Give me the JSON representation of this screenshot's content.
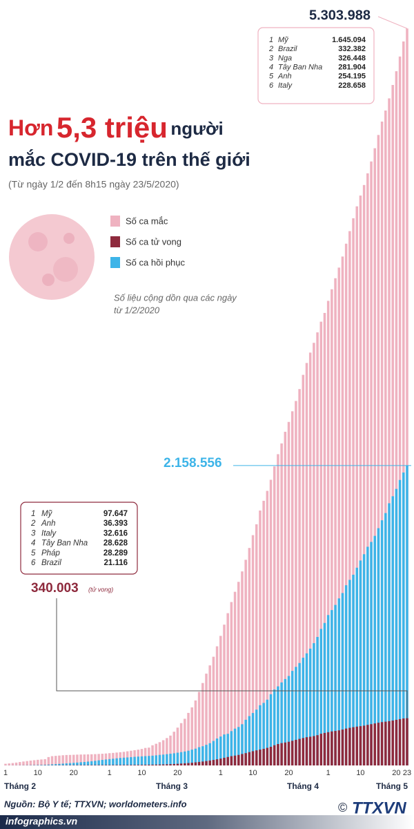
{
  "chart_data": {
    "type": "overlaid_bar",
    "title": {
      "lead": "Hơn",
      "highlight": "5,3 triệu",
      "rest": "người",
      "line2": "mắc COVID-19 trên thế giới"
    },
    "subtitle": "(Từ ngày 1/2 đến 8h15 ngày 23/5/2020)",
    "note": [
      "Số liệu cộng dồn qua các ngày",
      "từ 1/2/2020"
    ],
    "categories": [
      "1",
      null,
      null,
      null,
      null,
      null,
      null,
      null,
      null,
      "10",
      null,
      null,
      null,
      null,
      null,
      null,
      null,
      null,
      null,
      "20",
      null,
      null,
      null,
      null,
      null,
      null,
      null,
      null,
      null,
      "1",
      null,
      null,
      null,
      null,
      null,
      null,
      null,
      null,
      "10",
      null,
      null,
      null,
      null,
      null,
      null,
      null,
      null,
      null,
      "20",
      null,
      null,
      null,
      null,
      null,
      null,
      null,
      null,
      null,
      null,
      null,
      "1",
      null,
      null,
      null,
      null,
      null,
      null,
      null,
      null,
      "10",
      null,
      null,
      null,
      null,
      null,
      null,
      null,
      null,
      null,
      "20",
      null,
      null,
      null,
      null,
      null,
      null,
      null,
      null,
      null,
      null,
      "1",
      null,
      null,
      null,
      null,
      null,
      null,
      null,
      null,
      "10",
      null,
      null,
      null,
      null,
      null,
      null,
      null,
      null,
      null,
      "20",
      null,
      null,
      "23"
    ],
    "month_labels": [
      "Tháng 2",
      "Tháng 3",
      "Tháng 4",
      "Tháng 5"
    ],
    "ylim": [
      0,
      5350000
    ],
    "series": [
      {
        "name": "Số ca mắc",
        "color": "#efb2c0",
        "end_label": "5.303.988",
        "values": [
          12000,
          14500,
          17400,
          20600,
          24500,
          28300,
          31500,
          34900,
          37600,
          40600,
          43100,
          45200,
          60400,
          66900,
          69000,
          71200,
          73300,
          75200,
          75700,
          76700,
          77800,
          78600,
          79000,
          79600,
          80400,
          81400,
          82700,
          84100,
          86000,
          88400,
          90300,
          92800,
          95100,
          97900,
          101800,
          105800,
          109800,
          113600,
          118600,
          125900,
          128400,
          145200,
          156100,
          167500,
          181500,
          197100,
          214900,
          242700,
          272200,
          304500,
          336000,
          378200,
          418000,
          467600,
          529600,
          593300,
          660700,
          720100,
          782400,
          857500,
          932600,
          1013300,
          1095900,
          1176100,
          1249800,
          1321400,
          1396500,
          1480200,
          1565300,
          1657500,
          1735700,
          1834700,
          1904800,
          1976200,
          2056100,
          2152400,
          2240200,
          2317800,
          2401400,
          2472300,
          2549000,
          2623200,
          2708900,
          2811200,
          2896700,
          2971500,
          3041700,
          3117000,
          3193900,
          3256800,
          3343800,
          3427300,
          3506700,
          3583100,
          3662700,
          3755300,
          3845700,
          3938100,
          4024000,
          4101700,
          4177500,
          4261700,
          4347000,
          4442200,
          4537700,
          4634100,
          4713600,
          4801100,
          4897500,
          4996500,
          5102400,
          5210800,
          5303988
        ]
      },
      {
        "name": "Số ca tử vong",
        "color": "#8e2a3d",
        "end_label": "340.003",
        "end_note": "(tử vong)",
        "values": [
          259,
          305,
          362,
          426,
          492,
          565,
          638,
          724,
          813,
          910,
          1018,
          1115,
          1369,
          1384,
          1524,
          1666,
          1870,
          2009,
          2126,
          2247,
          2360,
          2460,
          2618,
          2699,
          2763,
          2800,
          2858,
          2923,
          2977,
          3050,
          3117,
          3202,
          3285,
          3387,
          3494,
          3599,
          3827,
          4030,
          4292,
          4635,
          4998,
          5438,
          5855,
          6521,
          7177,
          7989,
          9118,
          10297,
          11851,
          13568,
          15405,
          17386,
          19666,
          22337,
          25236,
          28309,
          31819,
          35311,
          39600,
          44264,
          49175,
          55200,
          60800,
          66900,
          70800,
          75800,
          82400,
          88700,
          95800,
          102700,
          108700,
          114200,
          119600,
          126700,
          134200,
          145500,
          154100,
          160700,
          165100,
          170400,
          177600,
          184200,
          191100,
          197200,
          203200,
          206800,
          211300,
          217800,
          228100,
          234100,
          239500,
          244800,
          248300,
          252400,
          258300,
          265300,
          270800,
          275300,
          279400,
          282800,
          286500,
          292100,
          297100,
          302400,
          307500,
          311900,
          315100,
          318700,
          323300,
          328300,
          333400,
          338200,
          340003
        ]
      },
      {
        "name": "Số ca hồi phục",
        "color": "#3db4e8",
        "end_label": "2.158.556",
        "values": [
          260,
          300,
          500,
          650,
          900,
          1150,
          1550,
          2050,
          2600,
          3300,
          4000,
          4700,
          5900,
          7900,
          9400,
          11000,
          12900,
          14900,
          16700,
          18600,
          20700,
          23000,
          24900,
          27600,
          30300,
          33300,
          36700,
          39800,
          42700,
          45600,
          48200,
          51200,
          53800,
          55900,
          57600,
          59800,
          61900,
          63600,
          65200,
          67000,
          68400,
          70200,
          72600,
          76000,
          78100,
          81000,
          84300,
          87400,
          91700,
          95800,
          100300,
          106000,
          113600,
          120700,
          131600,
          138300,
          148400,
          160000,
          176200,
          193800,
          208200,
          223000,
          227600,
          247000,
          264900,
          276900,
          296700,
          328700,
          355100,
          377400,
          401700,
          433000,
          450100,
          473300,
          512100,
          546600,
          569100,
          597500,
          622000,
          643900,
          680500,
          709300,
          737100,
          775300,
          806800,
          840600,
          880300,
          924900,
          982600,
          1025500,
          1082400,
          1118300,
          1155400,
          1202200,
          1240800,
          1297000,
          1335500,
          1372700,
          1423000,
          1474900,
          1520200,
          1574000,
          1608700,
          1652300,
          1707600,
          1764600,
          1816400,
          1887000,
          1937500,
          1990500,
          2054700,
          2108300,
          2158556
        ]
      }
    ],
    "tables": [
      {
        "rows": [
          [
            "1",
            "Mỹ",
            "1.645.094"
          ],
          [
            "2",
            "Brazil",
            "332.382"
          ],
          [
            "3",
            "Nga",
            "326.448"
          ],
          [
            "4",
            "Tây Ban Nha",
            "281.904"
          ],
          [
            "5",
            "Anh",
            "254.195"
          ],
          [
            "6",
            "Italy",
            "228.658"
          ]
        ]
      },
      {
        "rows": [
          [
            "1",
            "Mỹ",
            "97.647"
          ],
          [
            "2",
            "Anh",
            "36.393"
          ],
          [
            "3",
            "Italy",
            "32.616"
          ],
          [
            "4",
            "Tây Ban Nha",
            "28.628"
          ],
          [
            "5",
            "Pháp",
            "28.289"
          ],
          [
            "6",
            "Brazil",
            "21.116"
          ]
        ]
      }
    ],
    "source": "Nguồn: Bộ Y tế; TTXVN; worldometers.info",
    "website": "infographics.vn",
    "logo": "TTXVN",
    "copyright": "©"
  }
}
